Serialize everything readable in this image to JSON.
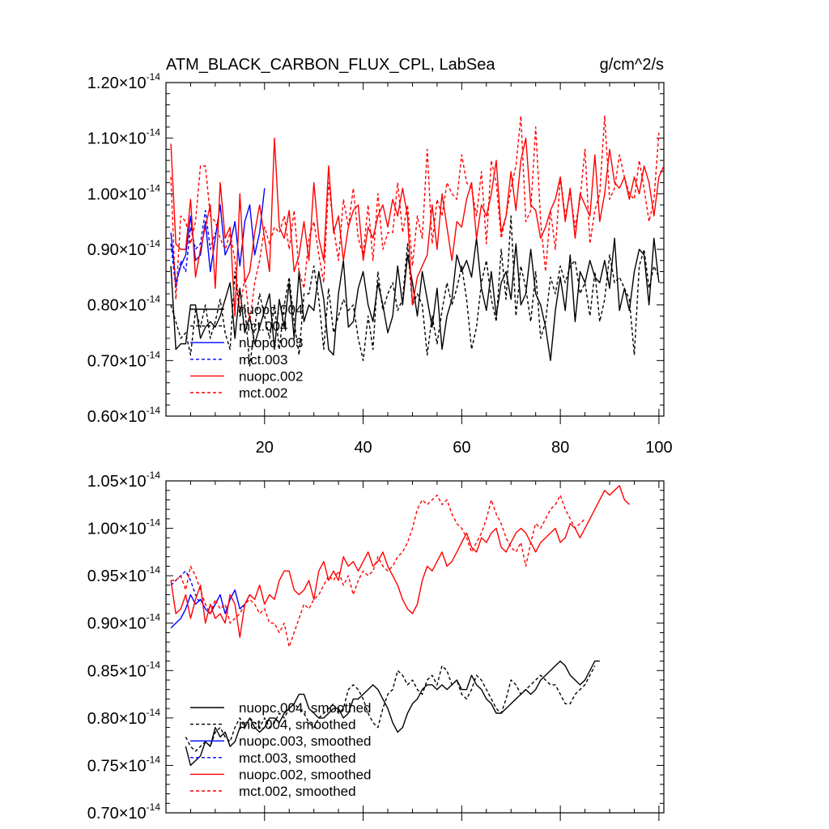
{
  "chart_data": [
    {
      "type": "line",
      "title": "ATM_BLACK_CARBON_FLUX_CPL, LabSea",
      "units": "g/cm^2/s",
      "xlim": [
        0,
        101
      ],
      "ylim": [
        0.6,
        1.2
      ],
      "x_ticks": [
        20,
        40,
        60,
        80,
        100
      ],
      "x_tick_labels": [
        "20",
        "40",
        "60",
        "80",
        "100"
      ],
      "y_ticks": [
        0.6,
        0.7,
        0.8,
        0.9,
        1.0,
        1.1,
        1.2
      ],
      "y_tick_labels": [
        "0.60",
        "0.70",
        "0.80",
        "0.90",
        "1.00",
        "1.10",
        "1.20"
      ],
      "y_exponent": "-14",
      "times_sign": "×",
      "series": [
        {
          "name": "nuopc.004",
          "color": "#000000",
          "dash": "solid",
          "x_start": 1,
          "values": [
            0.87,
            0.72,
            0.73,
            0.73,
            0.8,
            0.8,
            0.74,
            0.76,
            0.77,
            0.76,
            0.78,
            0.81,
            0.84,
            0.74,
            0.83,
            0.75,
            0.78,
            0.73,
            0.76,
            0.79,
            0.82,
            0.72,
            0.81,
            0.76,
            0.84,
            0.74,
            0.86,
            0.77,
            0.8,
            0.79,
            0.86,
            0.81,
            0.72,
            0.71,
            0.82,
            0.88,
            0.76,
            0.77,
            0.83,
            0.86,
            0.8,
            0.77,
            0.84,
            0.8,
            0.75,
            0.78,
            0.87,
            0.8,
            0.89,
            0.84,
            0.78,
            0.86,
            0.81,
            0.76,
            0.83,
            0.72,
            0.78,
            0.81,
            0.89,
            0.86,
            0.88,
            0.85,
            0.92,
            0.83,
            0.79,
            0.86,
            0.78,
            0.84,
            0.86,
            0.81,
            0.91,
            0.8,
            0.82,
            0.9,
            0.82,
            0.8,
            0.76,
            0.7,
            0.79,
            0.85,
            0.79,
            0.89,
            0.77,
            0.86,
            0.84,
            0.88,
            0.85,
            0.84,
            0.88,
            0.83,
            0.92,
            0.79,
            0.83,
            0.79,
            0.86,
            0.9,
            0.89,
            0.8,
            0.92,
            0.84
          ]
        },
        {
          "name": "mct.004",
          "color": "#000000",
          "dash": "dashed",
          "x_start": 1,
          "values": [
            0.8,
            0.77,
            0.74,
            0.75,
            0.71,
            0.79,
            0.76,
            0.8,
            0.74,
            0.77,
            0.81,
            0.75,
            0.72,
            0.86,
            0.78,
            0.8,
            0.69,
            0.76,
            0.82,
            0.78,
            0.74,
            0.8,
            0.72,
            0.8,
            0.85,
            0.77,
            0.71,
            0.82,
            0.82,
            0.87,
            0.81,
            0.72,
            0.83,
            0.75,
            0.78,
            0.81,
            0.79,
            0.8,
            0.74,
            0.7,
            0.78,
            0.72,
            0.86,
            0.79,
            0.82,
            0.84,
            0.79,
            0.81,
            0.91,
            0.8,
            0.82,
            0.8,
            0.71,
            0.78,
            0.73,
            0.79,
            0.84,
            0.8,
            0.83,
            0.87,
            0.81,
            0.72,
            0.76,
            0.84,
            0.88,
            0.81,
            0.77,
            0.9,
            0.81,
            0.96,
            0.78,
            0.87,
            0.83,
            0.77,
            0.86,
            0.74,
            0.77,
            0.85,
            0.82,
            0.87,
            0.84,
            0.87,
            0.88,
            0.82,
            0.84,
            0.78,
            0.86,
            0.77,
            0.81,
            0.89,
            0.84,
            0.85,
            0.83,
            0.81,
            0.71,
            0.87,
            0.9,
            0.83,
            0.87,
            0.85
          ]
        },
        {
          "name": "nuopc.003",
          "color": "#0000ff",
          "dash": "solid",
          "x_start": 1,
          "values": [
            0.93,
            0.84,
            0.87,
            0.89,
            0.96,
            0.88,
            0.89,
            0.95,
            0.86,
            0.92,
            0.98,
            0.89,
            0.91,
            0.95,
            0.87,
            0.95,
            0.98,
            0.89,
            0.93,
            1.01
          ]
        },
        {
          "name": "mct.003",
          "color": "#0000ff",
          "dash": "dashed",
          "x_start": 1,
          "values": [
            0.91,
            0.83,
            0.88,
            0.86,
            0.94,
            0.9,
            0.91,
            0.97,
            0.9,
            0.93
          ]
        },
        {
          "name": "nuopc.002",
          "color": "#ff0000",
          "dash": "solid",
          "x_start": 1,
          "values": [
            1.09,
            0.91,
            0.9,
            0.9,
            0.99,
            0.85,
            0.9,
            0.94,
            0.98,
            0.83,
            1.02,
            0.92,
            0.94,
            0.78,
            1.0,
            0.84,
            0.86,
            0.93,
            0.98,
            0.92,
            0.86,
            1.1,
            0.94,
            0.92,
            0.97,
            0.86,
            0.89,
            0.95,
            0.88,
            1.02,
            0.92,
            0.88,
            1.05,
            0.93,
            0.96,
            0.88,
            0.94,
            0.97,
            0.98,
            0.88,
            0.94,
            0.92,
            0.96,
            0.98,
            0.94,
            0.99,
            0.96,
            1.01,
            0.96,
            0.8,
            0.85,
            0.87,
            0.89,
            0.98,
            0.9,
            1.0,
            0.94,
            0.88,
            0.95,
            0.94,
            0.99,
            1.02,
            0.92,
            0.98,
            0.96,
            1.0,
            1.06,
            0.93,
            0.96,
            1.04,
            0.97,
            1.06,
            1.1,
            0.98,
            0.97,
            0.92,
            0.94,
            0.97,
            0.99,
            1.03,
            0.95,
            1.01,
            0.92,
            1.0,
            0.98,
            0.96,
            1.07,
            0.95,
            1.0,
            1.08,
            1.02,
            1.01,
            1.03,
            0.99,
            1.03,
            1.0,
            1.05,
            1.02,
            0.96,
            1.03,
            1.05
          ]
        },
        {
          "name": "mct.002",
          "color": "#ff0000",
          "dash": "dashed",
          "x_start": 1,
          "values": [
            1.03,
            0.81,
            0.96,
            0.95,
            0.91,
            0.95,
            1.05,
            1.05,
            0.96,
            0.95,
            0.92,
            0.9,
            0.93,
            0.88,
            0.79,
            0.85,
            0.77,
            0.84,
            0.88,
            0.94,
            0.91,
            0.94,
            0.93,
            0.96,
            0.9,
            0.97,
            0.86,
            0.83,
            0.92,
            0.95,
            0.89,
            0.84,
            1.02,
            0.94,
            0.88,
            0.99,
            0.94,
            1.01,
            0.92,
            0.89,
            0.98,
            0.88,
            1.0,
            0.9,
            0.93,
            0.93,
            1.02,
            0.93,
            0.98,
            0.87,
            0.96,
            0.92,
            1.08,
            0.91,
            0.99,
            0.96,
            1.02,
            1.0,
            0.99,
            1.07,
            1.02,
            1.01,
            0.96,
            1.04,
            0.91,
            1.06,
            1.02,
            0.92,
            0.96,
            1.01,
            1.05,
            1.14,
            0.95,
            0.97,
            1.12,
            0.95,
            0.86,
            0.97,
            0.9,
            1.03,
            0.96,
            1.0,
            0.94,
            0.99,
            1.08,
            0.91,
            0.97,
            1.0,
            1.14,
            0.99,
            1.01,
            1.07,
            1.03,
            1.0,
            0.99,
            1.06,
            1.01,
            0.95,
            0.99,
            1.11
          ]
        }
      ],
      "legend": [
        "nuopc.004",
        "mct.004",
        "nuopc.003",
        "mct.003",
        "nuopc.002",
        "mct.002"
      ]
    },
    {
      "type": "line",
      "title": "",
      "xlim": [
        0,
        101
      ],
      "ylim": [
        0.7,
        1.05
      ],
      "x_ticks": [
        20,
        40,
        60,
        80,
        100
      ],
      "y_ticks": [
        0.7,
        0.75,
        0.8,
        0.85,
        0.9,
        0.95,
        1.0,
        1.05
      ],
      "y_tick_labels": [
        "0.70",
        "0.75",
        "0.80",
        "0.85",
        "0.90",
        "0.95",
        "1.00",
        "1.05"
      ],
      "y_exponent": "-14",
      "times_sign": "×",
      "series": [
        {
          "name": "nuopc.004, smoothed",
          "color": "#000000",
          "dash": "solid",
          "x_start": 4,
          "values": [
            0.77,
            0.75,
            0.755,
            0.76,
            0.775,
            0.77,
            0.79,
            0.78,
            0.785,
            0.77,
            0.775,
            0.79,
            0.79,
            0.8,
            0.79,
            0.785,
            0.79,
            0.8,
            0.8,
            0.795,
            0.805,
            0.81,
            0.815,
            0.825,
            0.825,
            0.81,
            0.805,
            0.8,
            0.8,
            0.805,
            0.81,
            0.81,
            0.8,
            0.805,
            0.82,
            0.82,
            0.825,
            0.83,
            0.835,
            0.83,
            0.82,
            0.81,
            0.795,
            0.785,
            0.79,
            0.805,
            0.815,
            0.82,
            0.83,
            0.835,
            0.835,
            0.83,
            0.835,
            0.83,
            0.835,
            0.84,
            0.83,
            0.83,
            0.845,
            0.835,
            0.83,
            0.82,
            0.815,
            0.805,
            0.805,
            0.81,
            0.815,
            0.82,
            0.825,
            0.83,
            0.825,
            0.83,
            0.84,
            0.845,
            0.85,
            0.855,
            0.86,
            0.855,
            0.845,
            0.84,
            0.835,
            0.84,
            0.85,
            0.86,
            0.86
          ]
        },
        {
          "name": "mct.004, smoothed",
          "color": "#000000",
          "dash": "dashed",
          "x_start": 4,
          "values": [
            0.78,
            0.77,
            0.765,
            0.77,
            0.775,
            0.77,
            0.785,
            0.79,
            0.78,
            0.775,
            0.79,
            0.8,
            0.79,
            0.8,
            0.795,
            0.79,
            0.8,
            0.79,
            0.795,
            0.805,
            0.8,
            0.81,
            0.815,
            0.81,
            0.805,
            0.795,
            0.79,
            0.8,
            0.805,
            0.81,
            0.815,
            0.805,
            0.81,
            0.83,
            0.835,
            0.83,
            0.82,
            0.805,
            0.795,
            0.79,
            0.81,
            0.825,
            0.83,
            0.85,
            0.845,
            0.835,
            0.84,
            0.83,
            0.825,
            0.84,
            0.845,
            0.835,
            0.855,
            0.85,
            0.835,
            0.84,
            0.825,
            0.82,
            0.83,
            0.845,
            0.84,
            0.83,
            0.82,
            0.81,
            0.805,
            0.82,
            0.84,
            0.835,
            0.825,
            0.83,
            0.835,
            0.84,
            0.845,
            0.84,
            0.835,
            0.835,
            0.825,
            0.815,
            0.815,
            0.825,
            0.83,
            0.835,
            0.845,
            0.855
          ]
        },
        {
          "name": "nuopc.003, smoothed",
          "color": "#0000ff",
          "dash": "solid",
          "x_start": 1,
          "values": [
            0.895,
            0.9,
            0.905,
            0.915,
            0.93,
            0.92,
            0.925,
            0.915,
            0.91,
            0.92,
            0.93,
            0.91,
            0.925,
            0.935,
            0.915,
            0.92,
            0.93
          ]
        },
        {
          "name": "mct.003, smoothed",
          "color": "#0000ff",
          "dash": "dashed",
          "x_start": 1,
          "values": [
            0.94,
            0.945,
            0.95,
            0.955,
            0.945,
            0.93,
            0.92
          ]
        },
        {
          "name": "nuopc.002, smoothed",
          "color": "#ff0000",
          "dash": "solid",
          "x_start": 1,
          "values": [
            0.945,
            0.91,
            0.915,
            0.93,
            0.905,
            0.925,
            0.94,
            0.9,
            0.92,
            0.905,
            0.91,
            0.9,
            0.93,
            0.92,
            0.885,
            0.92,
            0.93,
            0.925,
            0.94,
            0.92,
            0.93,
            0.925,
            0.945,
            0.955,
            0.955,
            0.935,
            0.93,
            0.935,
            0.945,
            0.925,
            0.955,
            0.965,
            0.945,
            0.955,
            0.945,
            0.97,
            0.96,
            0.965,
            0.955,
            0.965,
            0.975,
            0.96,
            0.965,
            0.975,
            0.96,
            0.95,
            0.94,
            0.925,
            0.915,
            0.91,
            0.92,
            0.945,
            0.96,
            0.955,
            0.965,
            0.975,
            0.96,
            0.965,
            0.975,
            0.985,
            0.995,
            0.98,
            0.975,
            0.99,
            0.985,
            0.995,
            1.0,
            0.98,
            0.975,
            0.985,
            0.995,
            1.0,
            0.995,
            0.985,
            0.975,
            0.985,
            0.99,
            0.995,
            1.0,
            0.985,
            0.99,
            1.005,
            1.0,
            0.99,
            1.0,
            1.01,
            1.02,
            1.03,
            1.04,
            1.035,
            1.04,
            1.045,
            1.03,
            1.025
          ]
        },
        {
          "name": "mct.002, smoothed",
          "color": "#ff0000",
          "dash": "dashed",
          "x_start": 1,
          "values": [
            0.945,
            0.945,
            0.95,
            0.935,
            0.96,
            0.95,
            0.935,
            0.92,
            0.91,
            0.925,
            0.915,
            0.92,
            0.9,
            0.905,
            0.91,
            0.92,
            0.925,
            0.92,
            0.91,
            0.915,
            0.9,
            0.9,
            0.89,
            0.9,
            0.875,
            0.89,
            0.905,
            0.92,
            0.915,
            0.925,
            0.93,
            0.94,
            0.95,
            0.945,
            0.955,
            0.94,
            0.95,
            0.93,
            0.945,
            0.955,
            0.95,
            0.955,
            0.97,
            0.96,
            0.955,
            0.96,
            0.97,
            0.975,
            0.985,
            1.0,
            1.02,
            1.03,
            1.025,
            1.03,
            1.035,
            1.025,
            1.03,
            1.015,
            1.005,
            1.0,
            0.99,
            0.975,
            0.985,
            0.995,
            1.01,
            1.03,
            1.015,
            1.005,
            0.99,
            0.98,
            0.975,
            0.985,
            0.96,
            0.985,
            1.005,
            1.0,
            1.01,
            1.02,
            1.025,
            1.035,
            1.02,
            1.01,
            1.0,
            1.005,
            1.01
          ]
        }
      ],
      "legend": [
        "nuopc.004, smoothed",
        "mct.004, smoothed",
        "nuopc.003, smoothed",
        "mct.003, smoothed",
        "nuopc.002, smoothed",
        "mct.002, smoothed"
      ]
    }
  ]
}
